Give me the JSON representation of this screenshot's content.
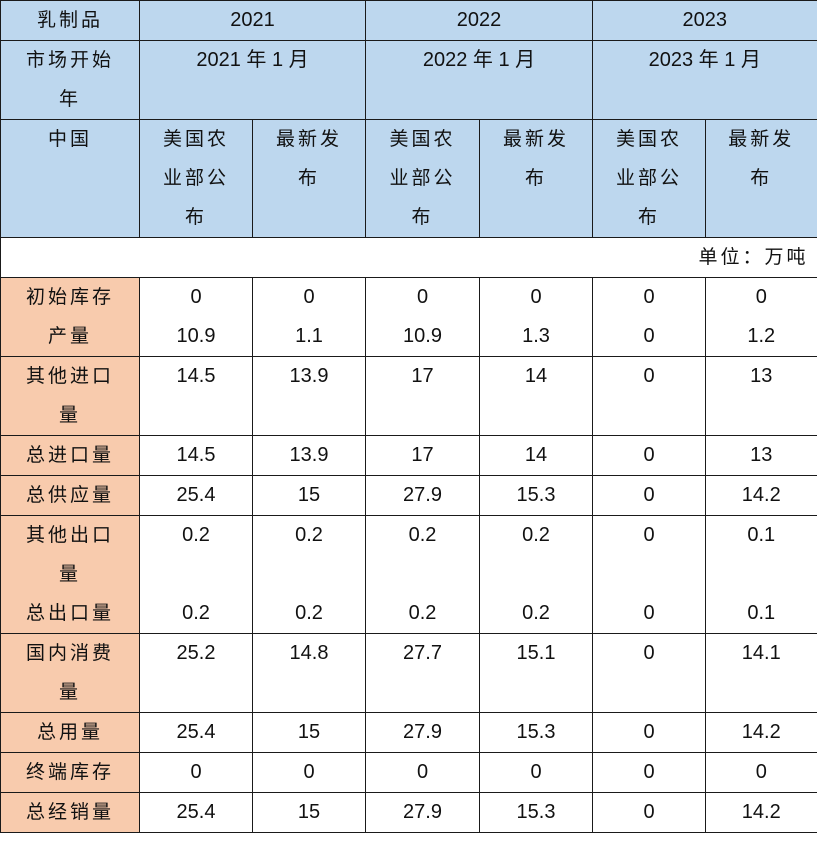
{
  "header": {
    "product_label": "乳制品",
    "years": [
      "2021",
      "2022",
      "2023"
    ],
    "market_year_label": "市场开始年",
    "market_year_label_lines": [
      "市场开始",
      "年"
    ],
    "market_starts": [
      "2021 年 1 月",
      "2022 年 1 月",
      "2023 年 1 月"
    ],
    "country_label": "中国",
    "sub_columns": [
      {
        "label": "美国农业部公布",
        "lines": [
          "美国农",
          "业部公",
          "布"
        ]
      },
      {
        "label": "最新发布",
        "lines": [
          "最新发",
          "布"
        ]
      }
    ]
  },
  "unit_note": "单位：万吨",
  "columns": [
    "2021 美国农业部公布",
    "2021 最新发布",
    "2022 美国农业部公布",
    "2022 最新发布",
    "2023 美国农业部公布",
    "2023 最新发布"
  ],
  "row_groups": [
    {
      "labels": [
        {
          "lines": [
            "初始库存"
          ]
        },
        {
          "lines": [
            "产量"
          ]
        }
      ],
      "rows": [
        {
          "label": "初始库存",
          "values": [
            "0",
            "0",
            "0",
            "0",
            "0",
            "0"
          ]
        },
        {
          "label": "产量",
          "values": [
            "10.9",
            "1.1",
            "10.9",
            "1.3",
            "0",
            "1.2"
          ]
        }
      ]
    },
    {
      "labels": [
        {
          "lines": [
            "其他进口",
            "量"
          ]
        }
      ],
      "rows": [
        {
          "label": "其他进口量",
          "values": [
            "14.5",
            "13.9",
            "17",
            "14",
            "0",
            "13"
          ]
        }
      ]
    },
    {
      "labels": [
        {
          "lines": [
            "总进口量"
          ]
        }
      ],
      "rows": [
        {
          "label": "总进口量",
          "values": [
            "14.5",
            "13.9",
            "17",
            "14",
            "0",
            "13"
          ]
        }
      ]
    },
    {
      "labels": [
        {
          "lines": [
            "总供应量"
          ]
        }
      ],
      "rows": [
        {
          "label": "总供应量",
          "values": [
            "25.4",
            "15",
            "27.9",
            "15.3",
            "0",
            "14.2"
          ]
        }
      ]
    },
    {
      "labels": [
        {
          "lines": [
            "其他出口",
            "量"
          ]
        },
        {
          "lines": [
            "总出口量"
          ]
        }
      ],
      "rows": [
        {
          "label": "其他出口量",
          "values": [
            "0.2",
            "0.2",
            "0.2",
            "0.2",
            "0",
            "0.1"
          ]
        },
        {
          "label": "总出口量",
          "values": [
            "0.2",
            "0.2",
            "0.2",
            "0.2",
            "0",
            "0.1"
          ]
        }
      ]
    },
    {
      "labels": [
        {
          "lines": [
            "国内消费",
            "量"
          ]
        }
      ],
      "rows": [
        {
          "label": "国内消费量",
          "values": [
            "25.2",
            "14.8",
            "27.7",
            "15.1",
            "0",
            "14.1"
          ]
        }
      ]
    },
    {
      "labels": [
        {
          "lines": [
            "总用量"
          ]
        }
      ],
      "rows": [
        {
          "label": "总用量",
          "values": [
            "25.4",
            "15",
            "27.9",
            "15.3",
            "0",
            "14.2"
          ]
        }
      ]
    },
    {
      "labels": [
        {
          "lines": [
            "终端库存"
          ]
        }
      ],
      "rows": [
        {
          "label": "终端库存",
          "values": [
            "0",
            "0",
            "0",
            "0",
            "0",
            "0"
          ]
        }
      ]
    },
    {
      "labels": [
        {
          "lines": [
            "总经销量"
          ]
        }
      ],
      "rows": [
        {
          "label": "总经销量",
          "values": [
            "25.4",
            "15",
            "27.9",
            "15.3",
            "0",
            "14.2"
          ]
        }
      ]
    }
  ],
  "colors": {
    "header_bg": "#bdd7ee",
    "row_label_bg": "#f8cbad",
    "border": "#1a1a1a"
  }
}
